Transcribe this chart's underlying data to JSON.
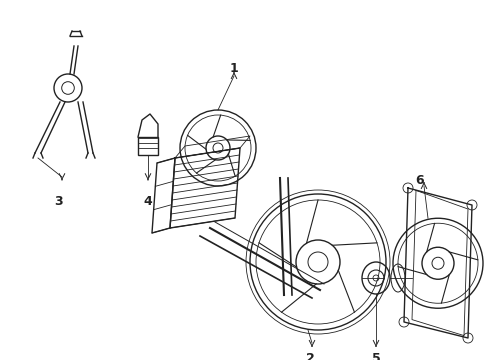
{
  "background_color": "#ffffff",
  "line_color": "#222222",
  "label_color": "#000000",
  "fig_width": 4.9,
  "fig_height": 3.6,
  "dpi": 100,
  "label_fontsize": 9
}
